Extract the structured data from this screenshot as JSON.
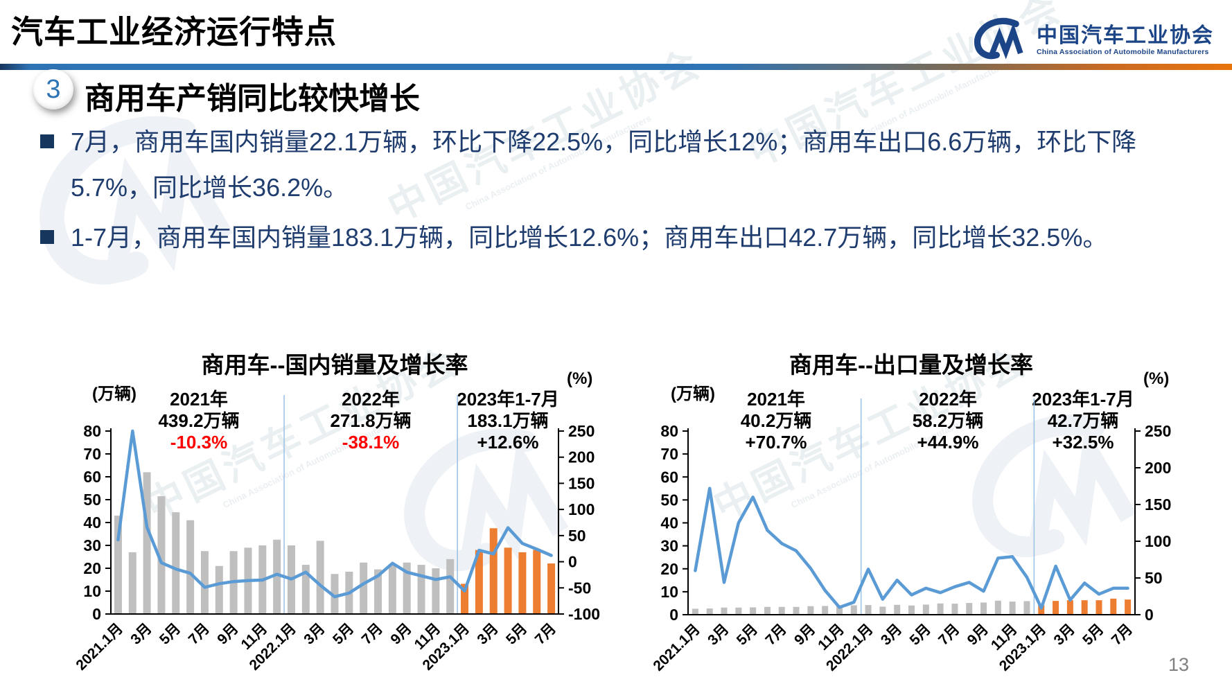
{
  "page": {
    "title": "汽车工业经济运行特点",
    "page_number": "13"
  },
  "logo": {
    "name_cn": "中国汽车工业协会",
    "name_en": "China Association of Automobile Manufacturers"
  },
  "section": {
    "badge": "3",
    "heading": "商用车产销同比较快增长"
  },
  "bullets": [
    "7月，商用车国内销量22.1万辆，环比下降22.5%，同比增长12%；商用车出口6.6万辆，环比下降5.7%，同比增长36.2%。",
    "1-7月，商用车国内销量183.1万辆，同比增长12.6%；商用车出口42.7万辆，同比增长32.5%。"
  ],
  "watermark": {
    "cn": "中国汽车工业协会",
    "en": "China Association of Automobile Manufacturers"
  },
  "colors": {
    "accent_blue": "#2E74B5",
    "accent_orange": "#E8740C",
    "bullet_navy": "#1F3C6E",
    "page_gray": "#7F7F7F"
  },
  "chart_data": [
    {
      "type": "bar+line",
      "title": "商用车--国内销量及增长率",
      "grid": false,
      "legend": "none",
      "left_axis": {
        "unit": "(万辆)",
        "min": 0,
        "max": 80,
        "ticks": [
          80,
          70,
          60,
          50,
          40,
          30,
          20,
          10,
          0
        ]
      },
      "right_axis": {
        "unit": "(%)",
        "min": -100,
        "max": 250,
        "ticks": [
          250,
          200,
          150,
          100,
          50,
          0,
          -50,
          -100
        ]
      },
      "x_ticks": [
        "2021.1月",
        "3月",
        "5月",
        "7月",
        "9月",
        "11月",
        "2022.1月",
        "3月",
        "5月",
        "7月",
        "9月",
        "11月",
        "2023.1月",
        "3月",
        "5月",
        "7月"
      ],
      "months": [
        "2021.1",
        "2021.2",
        "2021.3",
        "2021.4",
        "2021.5",
        "2021.6",
        "2021.7",
        "2021.8",
        "2021.9",
        "2021.10",
        "2021.11",
        "2021.12",
        "2022.1",
        "2022.2",
        "2022.3",
        "2022.4",
        "2022.5",
        "2022.6",
        "2022.7",
        "2022.8",
        "2022.9",
        "2022.10",
        "2022.11",
        "2022.12",
        "2023.1",
        "2023.2",
        "2023.3",
        "2023.4",
        "2023.5",
        "2023.6",
        "2023.7"
      ],
      "bar_series_name": "国内销量(万辆)",
      "bar_values": [
        43,
        27,
        62,
        51.5,
        44.5,
        41,
        27.5,
        21,
        27.5,
        29,
        30,
        32.5,
        30,
        21.5,
        32,
        17.5,
        18.5,
        22.5,
        19.5,
        21.5,
        22.5,
        21.5,
        20,
        24,
        13.2,
        28,
        37.5,
        29,
        27,
        28,
        22.1
      ],
      "line_series_name": "同比增长率(%)",
      "line_values": [
        42,
        250,
        66,
        -2,
        -14,
        -22,
        -49,
        -42,
        -38,
        -36,
        -35,
        -24,
        -33,
        -20,
        -45,
        -67,
        -60,
        -42,
        -27,
        -3,
        -20,
        -27,
        -34,
        -29,
        -56,
        22,
        15,
        65,
        35,
        24,
        12
      ],
      "bar_color_past": "#BFBFBF",
      "bar_color_current": "#ED7D31",
      "line_color": "#5B9BD5",
      "divider_color": "#9DC3E6",
      "annotations": [
        {
          "period": "2021年",
          "total": "439.2万辆",
          "growth": "-10.3%",
          "growth_color": "#FF0000"
        },
        {
          "period": "2022年",
          "total": "271.8万辆",
          "growth": "-38.1%",
          "growth_color": "#FF0000"
        },
        {
          "period": "2023年1-7月",
          "total": "183.1万辆",
          "growth": "+12.6%",
          "growth_color": "#000000"
        }
      ]
    },
    {
      "type": "bar+line",
      "title": "商用车--出口量及增长率",
      "grid": false,
      "legend": "none",
      "left_axis": {
        "unit": "(万辆)",
        "min": 0,
        "max": 80,
        "ticks": [
          80,
          70,
          60,
          50,
          40,
          30,
          20,
          10,
          0
        ]
      },
      "right_axis": {
        "unit": "(%)",
        "min": 0,
        "max": 250,
        "ticks": [
          250,
          200,
          150,
          100,
          50,
          0
        ]
      },
      "x_ticks": [
        "2021.1月",
        "3月",
        "5月",
        "7月",
        "9月",
        "11月",
        "2022.1月",
        "3月",
        "5月",
        "7月",
        "9月",
        "11月",
        "2023.1月",
        "3月",
        "5月",
        "7月"
      ],
      "months": [
        "2021.1",
        "2021.2",
        "2021.3",
        "2021.4",
        "2021.5",
        "2021.6",
        "2021.7",
        "2021.8",
        "2021.9",
        "2021.10",
        "2021.11",
        "2021.12",
        "2022.1",
        "2022.2",
        "2022.3",
        "2022.4",
        "2022.5",
        "2022.6",
        "2022.7",
        "2022.8",
        "2022.9",
        "2022.10",
        "2022.11",
        "2022.12",
        "2023.1",
        "2023.2",
        "2023.3",
        "2023.4",
        "2023.5",
        "2023.6",
        "2023.7"
      ],
      "bar_series_name": "出口量(万辆)",
      "bar_values": [
        2.6,
        2.7,
        3.1,
        3.1,
        3.2,
        3.4,
        3.4,
        3.4,
        3.7,
        3.8,
        3.7,
        4.1,
        4.2,
        3.5,
        4.3,
        4.0,
        4.4,
        4.9,
        4.8,
        5.1,
        5.3,
        6.1,
        5.7,
        5.9,
        4.2,
        6.0,
        6.3,
        6.3,
        6.3,
        7.0,
        6.6
      ],
      "line_series_name": "同比增长率(%)",
      "line_values": [
        60,
        172,
        44,
        125,
        160,
        115,
        97,
        87,
        63,
        33,
        10,
        17,
        62,
        21,
        47,
        27,
        36,
        30,
        38,
        44,
        32,
        77,
        79,
        51,
        9,
        66,
        20,
        43,
        28,
        36,
        36
      ],
      "bar_color_past": "#BFBFBF",
      "bar_color_current": "#ED7D31",
      "line_color": "#5B9BD5",
      "divider_color": "#9DC3E6",
      "annotations": [
        {
          "period": "2021年",
          "total": "40.2万辆",
          "growth": "+70.7%",
          "growth_color": "#000000"
        },
        {
          "period": "2022年",
          "total": "58.2万辆",
          "growth": "+44.9%",
          "growth_color": "#000000"
        },
        {
          "period": "2023年1-7月",
          "total": "42.7万辆",
          "growth": "+32.5%",
          "growth_color": "#000000"
        }
      ]
    }
  ]
}
